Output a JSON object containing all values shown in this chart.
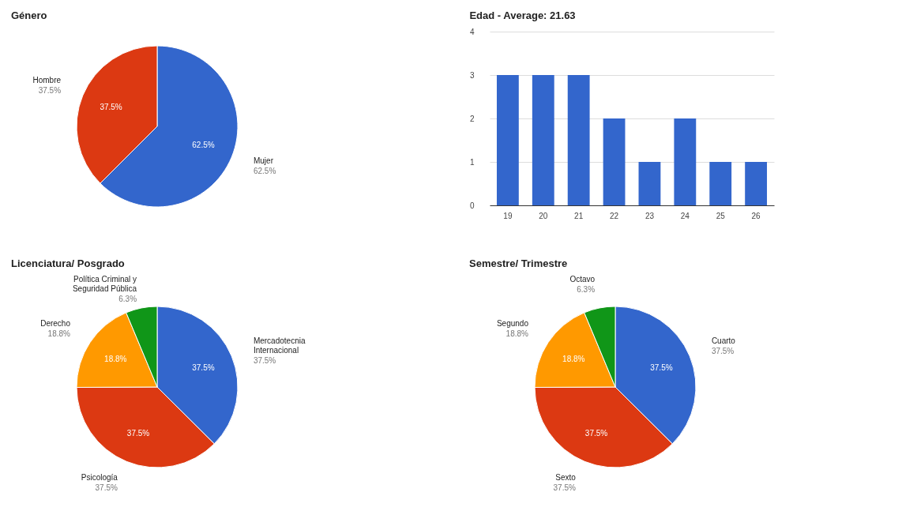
{
  "chart_data": [
    {
      "type": "pie",
      "title": "Género",
      "categories": [
        "Mujer",
        "Hombre"
      ],
      "values": [
        62.5,
        37.5
      ],
      "colors": [
        "#3366cc",
        "#dc3912"
      ],
      "value_labels": [
        "62.5%",
        "37.5%"
      ]
    },
    {
      "type": "bar",
      "title": "Edad - Average: 21.63",
      "categories": [
        "19",
        "20",
        "21",
        "22",
        "23",
        "24",
        "25",
        "26"
      ],
      "values": [
        3,
        3,
        3,
        2,
        1,
        2,
        1,
        1
      ],
      "color": "#3366cc",
      "ylim": [
        0,
        4
      ],
      "yticks": [
        0,
        1,
        2,
        3,
        4
      ],
      "grid": "y"
    },
    {
      "type": "pie",
      "title": "Licenciatura/ Posgrado",
      "categories": [
        "Mercadotecnia Internacional",
        "Psicología",
        "Derecho",
        "Política Criminal y Seguridad Pública"
      ],
      "values": [
        37.5,
        37.5,
        18.8,
        6.3
      ],
      "colors": [
        "#3366cc",
        "#dc3912",
        "#ff9900",
        "#109618"
      ],
      "value_labels": [
        "37.5%",
        "37.5%",
        "18.8%",
        "6.3%"
      ]
    },
    {
      "type": "pie",
      "title": "Semestre/ Trimestre",
      "categories": [
        "Cuarto",
        "Sexto",
        "Segundo",
        "Octavo"
      ],
      "values": [
        37.5,
        37.5,
        18.8,
        6.3
      ],
      "colors": [
        "#3366cc",
        "#dc3912",
        "#ff9900",
        "#109618"
      ],
      "value_labels": [
        "37.5%",
        "37.5%",
        "18.8%",
        "6.3%"
      ]
    }
  ]
}
